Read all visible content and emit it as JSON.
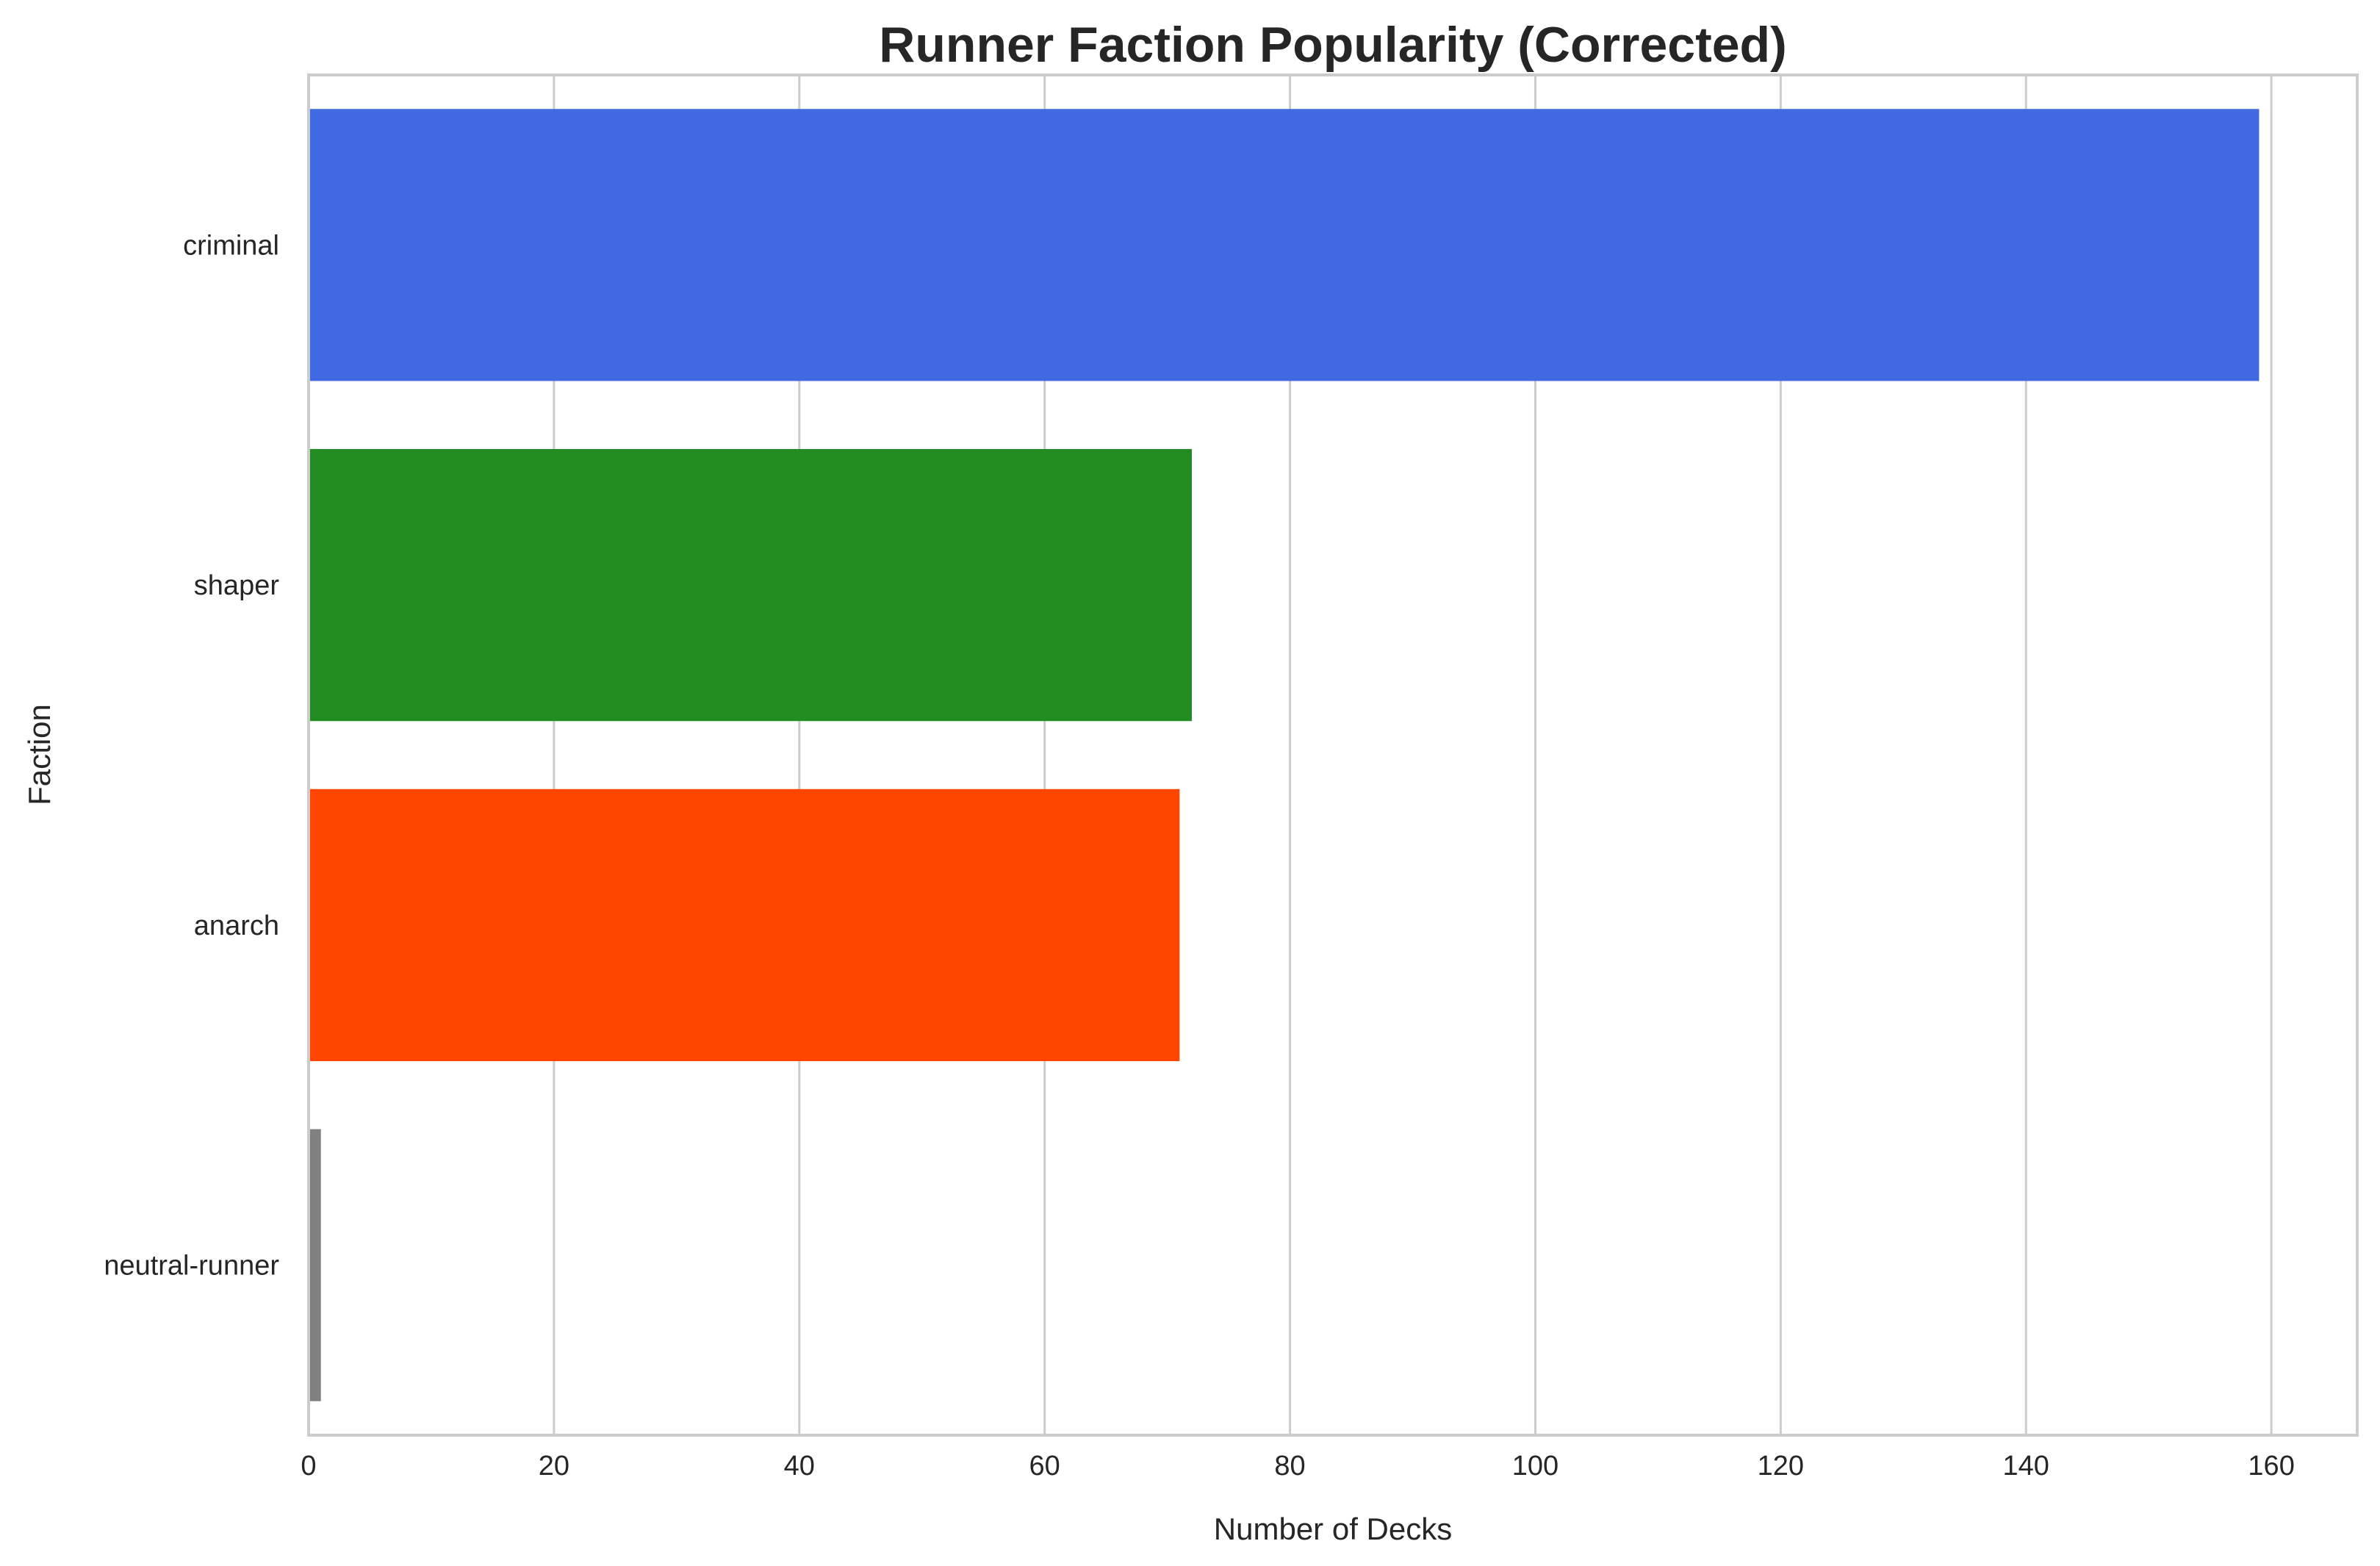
{
  "chart_data": {
    "type": "bar",
    "orientation": "horizontal",
    "title": "Runner Faction Popularity (Corrected)",
    "xlabel": "Number of Decks",
    "ylabel": "Faction",
    "categories": [
      "criminal",
      "shaper",
      "anarch",
      "neutral-runner"
    ],
    "values": [
      159,
      72,
      71,
      1
    ],
    "colors": [
      "#4169e1",
      "#228b22",
      "#ff4500",
      "#808080"
    ],
    "xlim": [
      0,
      167
    ],
    "xticks": [
      0,
      20,
      40,
      60,
      80,
      100,
      120,
      140,
      160
    ],
    "grid": "x",
    "legend": "none"
  }
}
